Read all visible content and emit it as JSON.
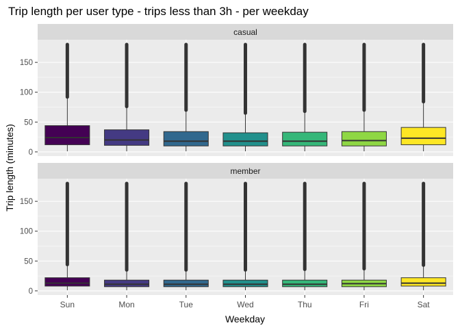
{
  "chart_data": {
    "type": "boxplot",
    "title": "Trip length per user type - trips less than 3h - per weekday",
    "xlabel": "Weekday",
    "ylabel": "Trip length (minutes)",
    "categories": [
      "Sun",
      "Mon",
      "Tue",
      "Wed",
      "Thu",
      "Fri",
      "Sat"
    ],
    "yticks": [
      0,
      50,
      100,
      150
    ],
    "ylim": [
      -7,
      188
    ],
    "grid": true,
    "fill_colors": [
      "#440154",
      "#443A83",
      "#31688E",
      "#21908C",
      "#35B779",
      "#8FD744",
      "#FDE725"
    ],
    "panels": [
      {
        "name": "casual",
        "boxes": [
          {
            "category": "Sun",
            "whisker_low": 1,
            "q1": 12,
            "median": 24,
            "q3": 44,
            "outlier_start": 92,
            "max": 180
          },
          {
            "category": "Mon",
            "whisker_low": 1,
            "q1": 11,
            "median": 20,
            "q3": 37,
            "outlier_start": 76,
            "max": 180
          },
          {
            "category": "Tue",
            "whisker_low": 1,
            "q1": 10,
            "median": 18,
            "q3": 34,
            "outlier_start": 70,
            "max": 180
          },
          {
            "category": "Wed",
            "whisker_low": 1,
            "q1": 10,
            "median": 18,
            "q3": 32,
            "outlier_start": 65,
            "max": 180
          },
          {
            "category": "Thu",
            "whisker_low": 1,
            "q1": 10,
            "median": 18,
            "q3": 33,
            "outlier_start": 68,
            "max": 180
          },
          {
            "category": "Fri",
            "whisker_low": 1,
            "q1": 10,
            "median": 19,
            "q3": 34,
            "outlier_start": 70,
            "max": 180
          },
          {
            "category": "Sat",
            "whisker_low": 1,
            "q1": 12,
            "median": 23,
            "q3": 41,
            "outlier_start": 84,
            "max": 180
          }
        ]
      },
      {
        "name": "member",
        "boxes": [
          {
            "category": "Sun",
            "whisker_low": 1,
            "q1": 8,
            "median": 13,
            "q3": 22,
            "outlier_start": 44,
            "max": 180
          },
          {
            "category": "Mon",
            "whisker_low": 1,
            "q1": 7,
            "median": 11,
            "q3": 18,
            "outlier_start": 35,
            "max": 180
          },
          {
            "category": "Tue",
            "whisker_low": 1,
            "q1": 7,
            "median": 11,
            "q3": 18,
            "outlier_start": 35,
            "max": 180
          },
          {
            "category": "Wed",
            "whisker_low": 1,
            "q1": 7,
            "median": 11,
            "q3": 18,
            "outlier_start": 35,
            "max": 180
          },
          {
            "category": "Thu",
            "whisker_low": 1,
            "q1": 7,
            "median": 11,
            "q3": 18,
            "outlier_start": 36,
            "max": 180
          },
          {
            "category": "Fri",
            "whisker_low": 1,
            "q1": 7,
            "median": 12,
            "q3": 18,
            "outlier_start": 37,
            "max": 180
          },
          {
            "category": "Sat",
            "whisker_low": 1,
            "q1": 8,
            "median": 13,
            "q3": 22,
            "outlier_start": 43,
            "max": 180
          }
        ]
      }
    ]
  }
}
